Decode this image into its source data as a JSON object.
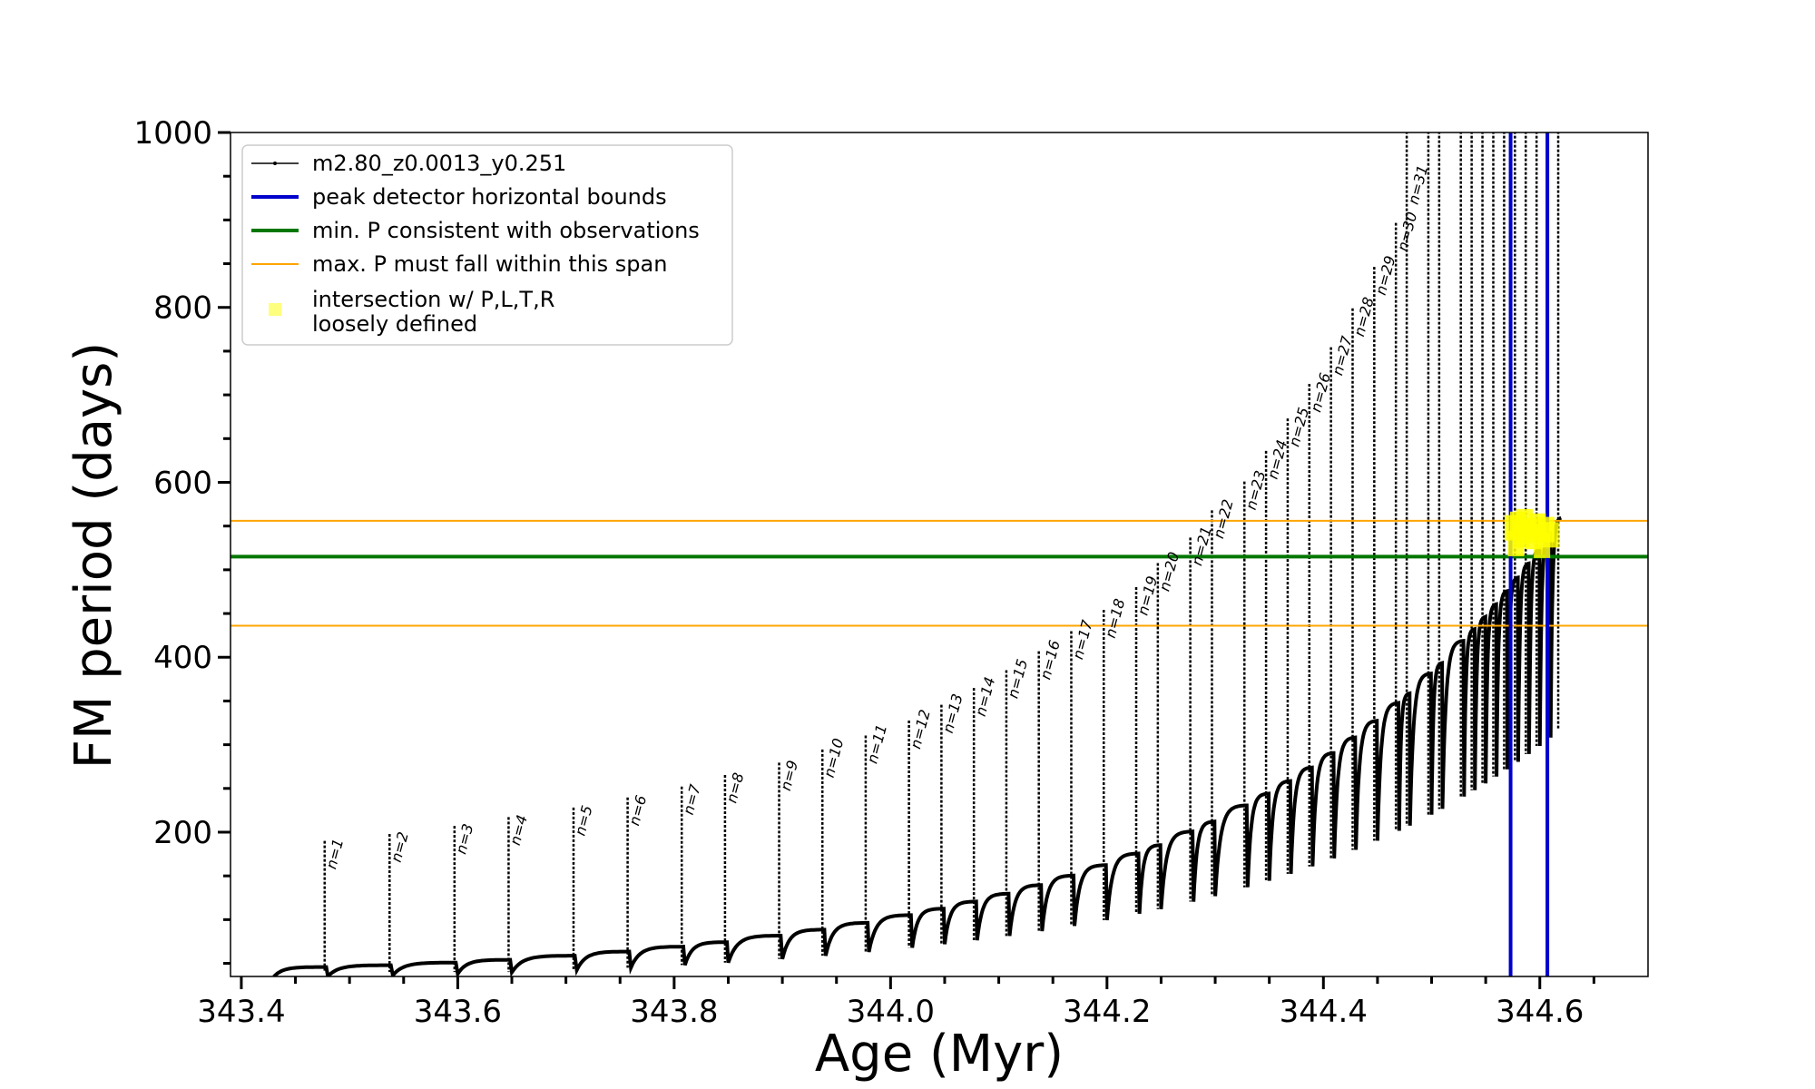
{
  "chart_data": {
    "type": "line",
    "title": "",
    "xlabel": "Age (Myr)",
    "ylabel": "FM period (days)",
    "xlim": [
      343.39,
      344.7
    ],
    "ylim": [
      35,
      1000
    ],
    "xticks": [
      343.4,
      343.6,
      343.8,
      344.0,
      344.2,
      344.4,
      344.6
    ],
    "xtick_labels": [
      "343.4",
      "343.6",
      "343.8",
      "344.0",
      "344.2",
      "344.4",
      "344.6"
    ],
    "yticks": [
      200,
      400,
      600,
      800,
      1000
    ],
    "ytick_labels": [
      "200",
      "400",
      "600",
      "800",
      "1000"
    ],
    "x_minor_step": 0.05,
    "y_minor_step": 50,
    "grid": false,
    "legend_position": "top-left",
    "series": [
      {
        "name": "m2.80_z0.0013_y0.251",
        "style": "line-with-dots",
        "color": "#000000",
        "pulses": {
          "count_labeled": 31,
          "n_labels": [
            "n=1",
            "n=2",
            "n=3",
            "n=4",
            "n=5",
            "n=6",
            "n=7",
            "n=8",
            "n=9",
            "n=10",
            "n=11",
            "n=12",
            "n=13",
            "n=14",
            "n=15",
            "n=16",
            "n=17",
            "n=18",
            "n=19",
            "n=20",
            "n=21",
            "n=22",
            "n=23",
            "n=24",
            "n=25",
            "n=26",
            "n=27",
            "n=28",
            "n=29",
            "n=30",
            "n=31"
          ],
          "pulse_ages": [
            343.43,
            343.48,
            343.54,
            343.6,
            343.65,
            343.71,
            343.76,
            343.81,
            343.85,
            343.9,
            343.94,
            343.98,
            344.02,
            344.05,
            344.08,
            344.11,
            344.14,
            344.17,
            344.2,
            344.23,
            344.25,
            344.28,
            344.3,
            344.33,
            344.35,
            344.37,
            344.39,
            344.41,
            344.43,
            344.45,
            344.47,
            344.48,
            344.5,
            344.51,
            344.53,
            344.54,
            344.55,
            344.56,
            344.57,
            344.58,
            344.59,
            344.6,
            344.61,
            344.62
          ],
          "baseline_start": 45,
          "baseline_end": 560,
          "peak_n1": 190,
          "peak_n31": 950
        }
      },
      {
        "name": "peak detector horizontal bounds",
        "type": "vline",
        "color": "#0000cc",
        "x": [
          344.573,
          344.607
        ]
      },
      {
        "name": "min. P consistent with observations",
        "type": "hline",
        "color": "#007700",
        "y": 515
      },
      {
        "name": "max. P must fall within this span",
        "type": "hline",
        "color": "#ffa500",
        "y": [
          436,
          556
        ]
      },
      {
        "name": "intersection w/ P,L,T,R\nloosely defined",
        "type": "scatter",
        "color": "#ffff00",
        "points": [
          [
            344.575,
            548
          ],
          [
            344.578,
            530
          ],
          [
            344.58,
            552
          ],
          [
            344.583,
            540
          ],
          [
            344.586,
            555
          ],
          [
            344.59,
            545
          ],
          [
            344.594,
            538
          ],
          [
            344.598,
            550
          ],
          [
            344.602,
            528
          ],
          [
            344.606,
            546
          ],
          [
            344.61,
            540
          ]
        ]
      }
    ],
    "legend": [
      {
        "label": "m2.80_z0.0013_y0.251",
        "kind": "line-dot",
        "color": "#000000"
      },
      {
        "label": "peak detector horizontal bounds",
        "kind": "line-thick",
        "color": "#0000cc"
      },
      {
        "label": "min. P consistent with observations",
        "kind": "line-thick",
        "color": "#007700"
      },
      {
        "label": "max. P must fall within this span",
        "kind": "line-thin",
        "color": "#ffa500"
      },
      {
        "label_lines": [
          "intersection w/ P,L,T,R",
          "loosely defined"
        ],
        "kind": "marker",
        "color": "#ffff00"
      }
    ]
  }
}
